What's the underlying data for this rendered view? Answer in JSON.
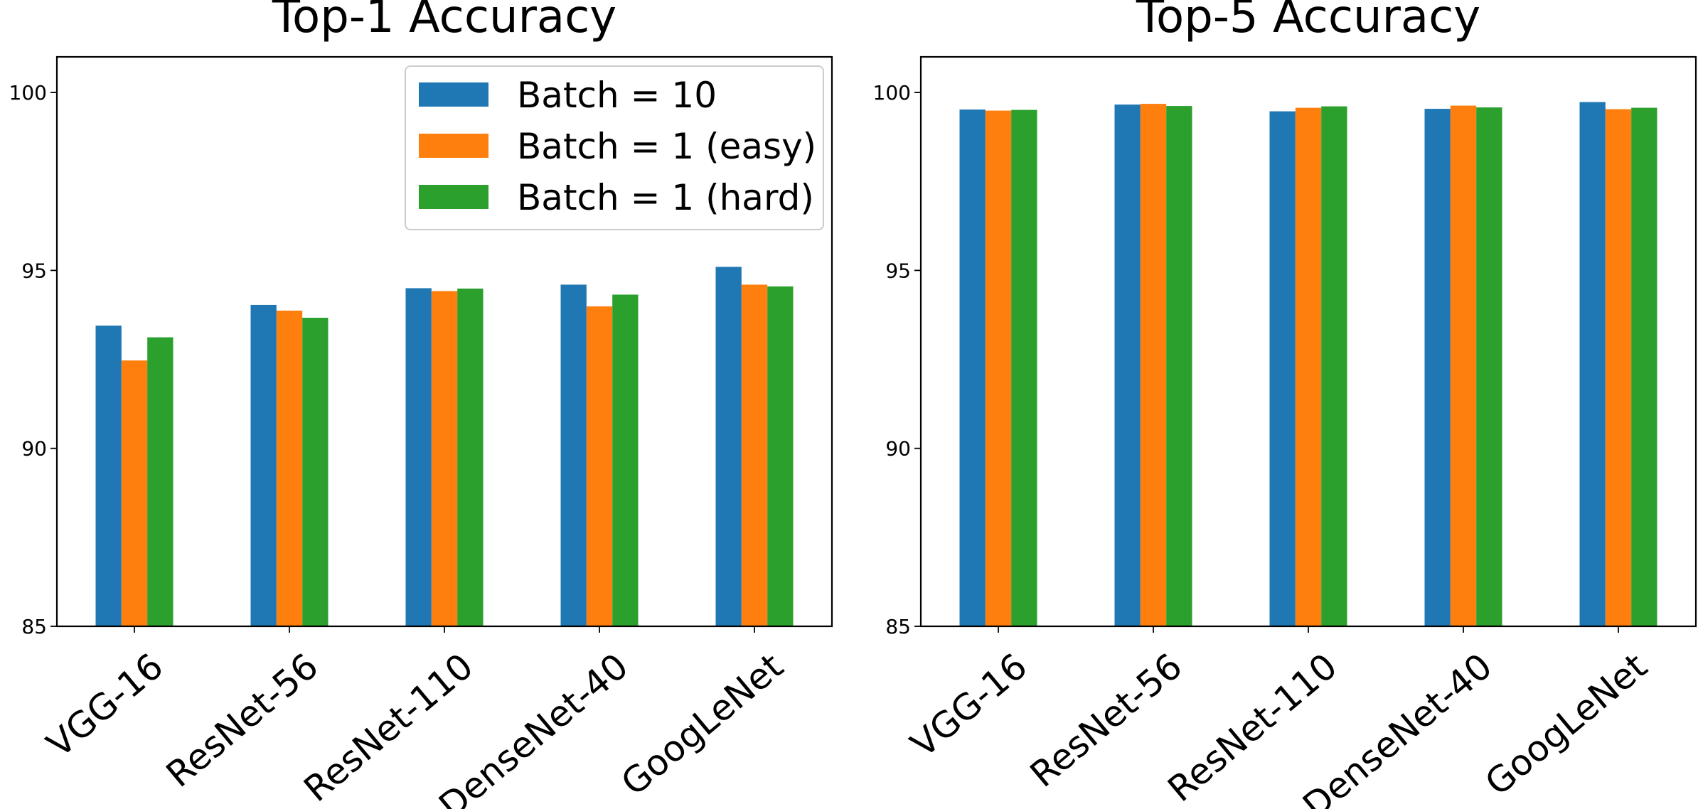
{
  "colors": {
    "batch10": "#1f77b4",
    "batch1_easy": "#ff7f0e",
    "batch1_hard": "#2ca02c"
  },
  "chart_data": [
    {
      "type": "bar",
      "title": "Top-1 Accuracy",
      "xlabel": "",
      "ylabel": "",
      "ylim": [
        85,
        101
      ],
      "yticks": [
        85,
        90,
        95,
        100
      ],
      "grid": false,
      "legend_position": "top-right",
      "categories": [
        "VGG-16",
        "ResNet-56",
        "ResNet-110",
        "DenseNet-40",
        "GoogLeNet"
      ],
      "series": [
        {
          "name": "Batch = 10",
          "color": "#1f77b4",
          "values": [
            93.45,
            94.03,
            94.5,
            94.6,
            95.1
          ]
        },
        {
          "name": "Batch = 1 (easy)",
          "color": "#ff7f0e",
          "values": [
            92.47,
            93.87,
            94.42,
            93.99,
            94.6
          ]
        },
        {
          "name": "Batch = 1 (hard)",
          "color": "#2ca02c",
          "values": [
            93.12,
            93.67,
            94.49,
            94.32,
            94.55
          ]
        }
      ]
    },
    {
      "type": "bar",
      "title": "Top-5 Accuracy",
      "xlabel": "",
      "ylabel": "",
      "ylim": [
        85,
        101
      ],
      "yticks": [
        85,
        90,
        95,
        100
      ],
      "grid": false,
      "legend_position": "none",
      "categories": [
        "VGG-16",
        "ResNet-56",
        "ResNet-110",
        "DenseNet-40",
        "GoogLeNet"
      ],
      "series": [
        {
          "name": "Batch = 10",
          "color": "#1f77b4",
          "values": [
            99.52,
            99.66,
            99.47,
            99.54,
            99.73
          ]
        },
        {
          "name": "Batch = 1 (easy)",
          "color": "#ff7f0e",
          "values": [
            99.49,
            99.68,
            99.57,
            99.63,
            99.53
          ]
        },
        {
          "name": "Batch = 1 (hard)",
          "color": "#2ca02c",
          "values": [
            99.51,
            99.62,
            99.61,
            99.58,
            99.57
          ]
        }
      ]
    }
  ]
}
